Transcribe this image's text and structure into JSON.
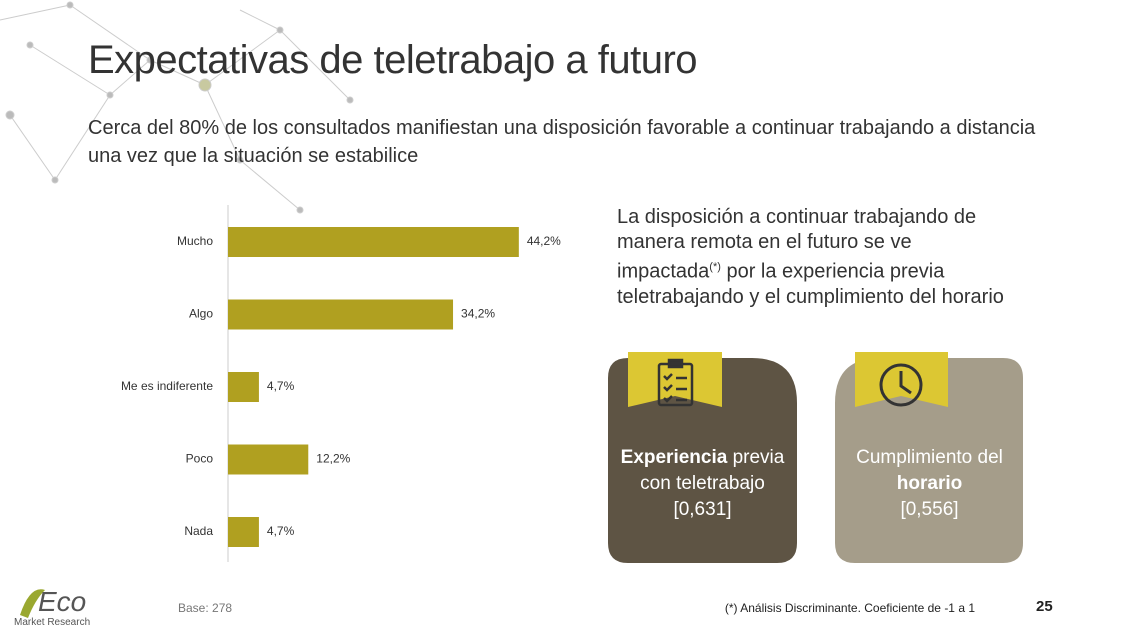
{
  "slide": {
    "title": "Expectativas de teletrabajo a futuro",
    "subtitle": "Cerca del 80% de los consultados manifiestan una disposición favorable a continuar trabajando a distancia una vez que la situación se estabilice",
    "callout": {
      "text_before": "La disposición a continuar trabajando de manera remota en el futuro se ve impactada",
      "superscript": "(*)",
      "text_after": " por la experiencia previa teletrabajando y el cumplimiento del horario"
    },
    "cards": [
      {
        "bold": "Experiencia",
        "text": " previa con teletrabajo",
        "coefficient": "[0,631]"
      },
      {
        "text": "Cumplimiento del",
        "bold": "horario",
        "coefficient": "[0,556]"
      }
    ],
    "base": "Base: 278",
    "footnote": "(*) Análisis Discriminante. Coeficiente de -1 a 1",
    "page_number": "25",
    "logo": {
      "name": "Eco",
      "tagline": "Market Research"
    }
  },
  "chart_data": {
    "type": "hbar",
    "categories": [
      "Mucho",
      "Algo",
      "Me es indiferente",
      "Poco",
      "Nada"
    ],
    "values": [
      44.2,
      34.2,
      4.7,
      12.2,
      4.7
    ],
    "value_labels": [
      "44,2%",
      "34,2%",
      "4,7%",
      "12,2%",
      "4,7%"
    ],
    "color": "#b0a020"
  }
}
